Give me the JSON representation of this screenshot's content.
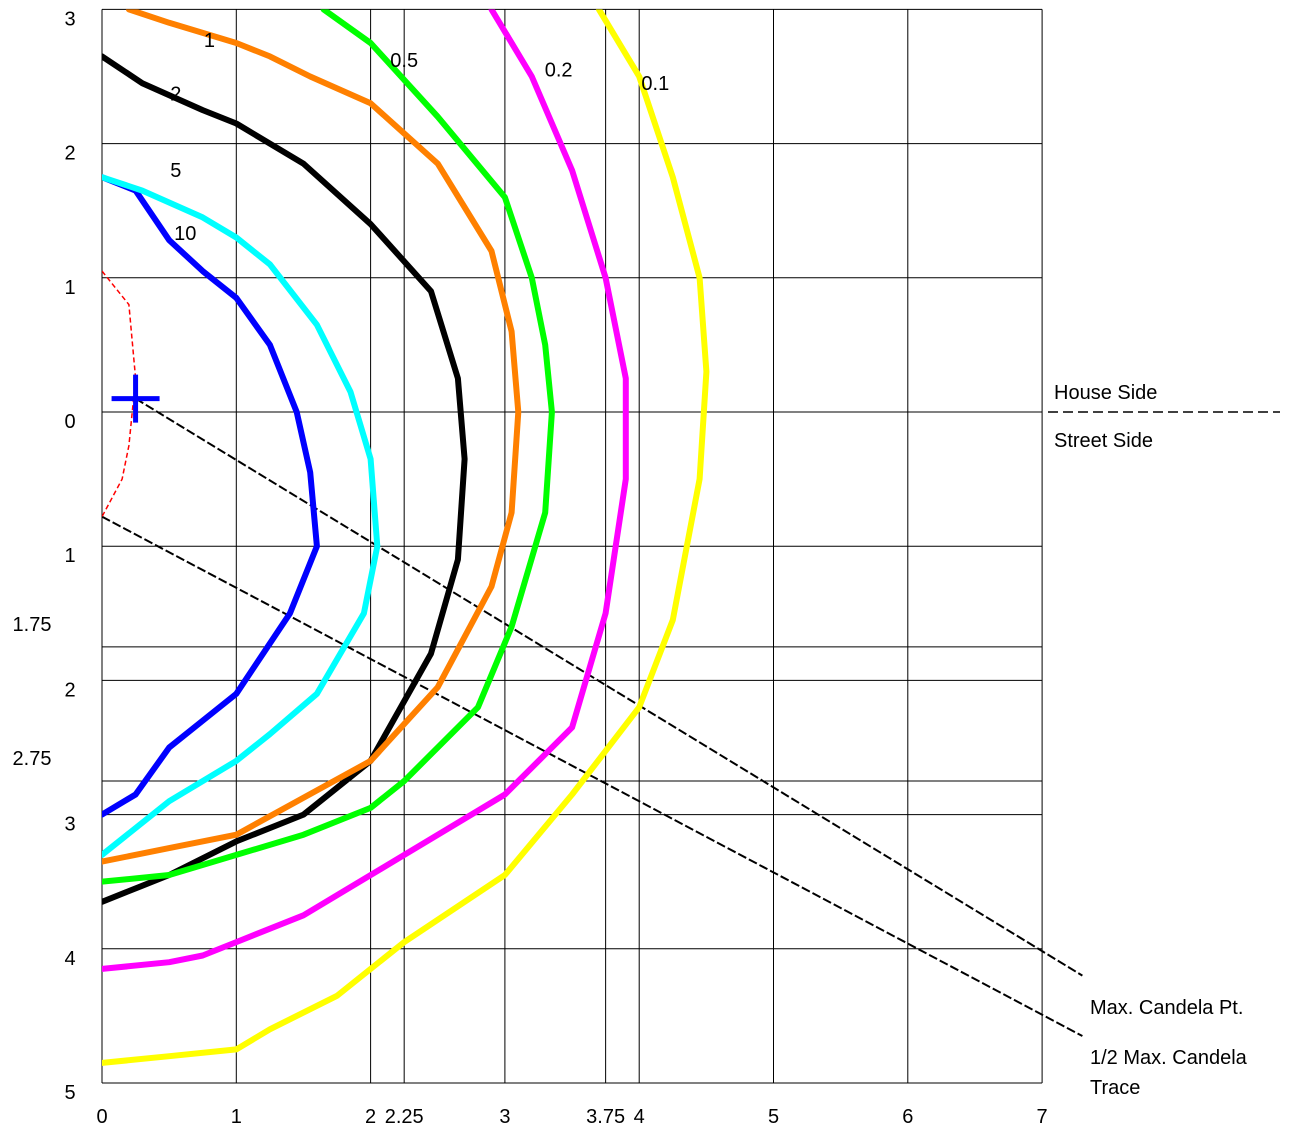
{
  "chart_data": {
    "type": "line",
    "title": "",
    "xlabel": "",
    "ylabel": "",
    "xlim": [
      0,
      7
    ],
    "ylim": [
      -3,
      5
    ],
    "grid": true,
    "x_ticks": [
      {
        "v": 0,
        "label": "0"
      },
      {
        "v": 1,
        "label": "1"
      },
      {
        "v": 2,
        "label": "2"
      },
      {
        "v": 2.25,
        "label": "2.25"
      },
      {
        "v": 3,
        "label": "3"
      },
      {
        "v": 3.75,
        "label": "3.75"
      },
      {
        "v": 4,
        "label": "4"
      },
      {
        "v": 5,
        "label": "5"
      },
      {
        "v": 6,
        "label": "6"
      },
      {
        "v": 7,
        "label": "7"
      }
    ],
    "y_ticks": [
      {
        "v": -3,
        "label": "3"
      },
      {
        "v": -2,
        "label": "2"
      },
      {
        "v": -1,
        "label": "1"
      },
      {
        "v": 0,
        "label": "0"
      },
      {
        "v": 1,
        "label": "1"
      },
      {
        "v": 1.75,
        "label": "1.75"
      },
      {
        "v": 2,
        "label": "2"
      },
      {
        "v": 2.75,
        "label": "2.75"
      },
      {
        "v": 3,
        "label": "3"
      },
      {
        "v": 4,
        "label": "4"
      },
      {
        "v": 5,
        "label": "5"
      }
    ],
    "series": [
      {
        "name": "10",
        "color": "#0000ff",
        "label_at": [
          0.62,
          -1.28
        ],
        "points": [
          [
            0,
            -1.75
          ],
          [
            0.25,
            -1.65
          ],
          [
            0.5,
            -1.28
          ],
          [
            0.75,
            -1.05
          ],
          [
            1.0,
            -0.85
          ],
          [
            1.25,
            -0.5
          ],
          [
            1.45,
            0.0
          ],
          [
            1.55,
            0.45
          ],
          [
            1.6,
            1.0
          ],
          [
            1.4,
            1.5
          ],
          [
            1.0,
            2.1
          ],
          [
            0.75,
            2.3
          ],
          [
            0.5,
            2.5
          ],
          [
            0.25,
            2.85
          ],
          [
            0,
            3.0
          ]
        ]
      },
      {
        "name": "5",
        "color": "#00ffff",
        "label_at": [
          0.55,
          -1.75
        ],
        "points": [
          [
            0,
            -1.75
          ],
          [
            0.3,
            -1.65
          ],
          [
            0.75,
            -1.45
          ],
          [
            1.0,
            -1.3
          ],
          [
            1.25,
            -1.1
          ],
          [
            1.6,
            -0.65
          ],
          [
            1.85,
            -0.15
          ],
          [
            2.0,
            0.35
          ],
          [
            2.05,
            1.0
          ],
          [
            1.95,
            1.5
          ],
          [
            1.6,
            2.1
          ],
          [
            1.25,
            2.4
          ],
          [
            1.0,
            2.6
          ],
          [
            0.5,
            2.9
          ],
          [
            0,
            3.3
          ]
        ]
      },
      {
        "name": "2",
        "color": "#000000",
        "label_at": [
          0.55,
          -2.32
        ],
        "points": [
          [
            0,
            -2.65
          ],
          [
            0.3,
            -2.45
          ],
          [
            0.75,
            -2.25
          ],
          [
            1.0,
            -2.15
          ],
          [
            1.5,
            -1.85
          ],
          [
            2.0,
            -1.4
          ],
          [
            2.45,
            -0.9
          ],
          [
            2.65,
            -0.25
          ],
          [
            2.7,
            0.35
          ],
          [
            2.65,
            1.1
          ],
          [
            2.45,
            1.8
          ],
          [
            2.0,
            2.6
          ],
          [
            1.5,
            3.0
          ],
          [
            1.0,
            3.2
          ],
          [
            0.5,
            3.45
          ],
          [
            0,
            3.65
          ]
        ]
      },
      {
        "name": "1",
        "color": "#ff8000",
        "label_at": [
          0.8,
          -2.72
        ],
        "points": [
          [
            0.2,
            -3.0
          ],
          [
            0.5,
            -2.9
          ],
          [
            1.0,
            -2.75
          ],
          [
            1.25,
            -2.65
          ],
          [
            1.55,
            -2.5
          ],
          [
            2.0,
            -2.3
          ],
          [
            2.5,
            -1.85
          ],
          [
            2.9,
            -1.2
          ],
          [
            3.05,
            -0.6
          ],
          [
            3.1,
            0.0
          ],
          [
            3.05,
            0.75
          ],
          [
            2.9,
            1.3
          ],
          [
            2.5,
            2.05
          ],
          [
            2.0,
            2.6
          ],
          [
            1.0,
            3.15
          ],
          [
            0.5,
            3.25
          ],
          [
            0,
            3.35
          ]
        ]
      },
      {
        "name": "0.5",
        "color": "#00ff00",
        "label_at": [
          2.25,
          -2.57
        ],
        "points": [
          [
            1.65,
            -3.0
          ],
          [
            2.0,
            -2.75
          ],
          [
            2.5,
            -2.2
          ],
          [
            3.0,
            -1.6
          ],
          [
            3.2,
            -1.0
          ],
          [
            3.3,
            -0.5
          ],
          [
            3.35,
            0.0
          ],
          [
            3.3,
            0.75
          ],
          [
            3.05,
            1.6
          ],
          [
            2.8,
            2.2
          ],
          [
            2.25,
            2.75
          ],
          [
            2.0,
            2.95
          ],
          [
            1.5,
            3.15
          ],
          [
            1.0,
            3.3
          ],
          [
            0.5,
            3.45
          ],
          [
            0,
            3.5
          ]
        ]
      },
      {
        "name": "0.2",
        "color": "#ff00ff",
        "label_at": [
          3.4,
          -2.5
        ],
        "points": [
          [
            2.9,
            -3.0
          ],
          [
            3.2,
            -2.5
          ],
          [
            3.5,
            -1.8
          ],
          [
            3.75,
            -1.0
          ],
          [
            3.9,
            -0.25
          ],
          [
            3.9,
            0.5
          ],
          [
            3.75,
            1.5
          ],
          [
            3.5,
            2.35
          ],
          [
            3.0,
            2.85
          ],
          [
            2.25,
            3.3
          ],
          [
            1.5,
            3.75
          ],
          [
            1.0,
            3.95
          ],
          [
            0.75,
            4.05
          ],
          [
            0.5,
            4.1
          ],
          [
            0,
            4.15
          ]
        ]
      },
      {
        "name": "0.1",
        "color": "#ffff00",
        "label_at": [
          4.12,
          -2.4
        ],
        "points": [
          [
            3.7,
            -3.0
          ],
          [
            4.0,
            -2.5
          ],
          [
            4.25,
            -1.75
          ],
          [
            4.45,
            -1.0
          ],
          [
            4.5,
            -0.3
          ],
          [
            4.45,
            0.5
          ],
          [
            4.25,
            1.55
          ],
          [
            4.0,
            2.2
          ],
          [
            3.5,
            2.85
          ],
          [
            3.0,
            3.45
          ],
          [
            2.25,
            3.95
          ],
          [
            1.75,
            4.35
          ],
          [
            1.25,
            4.6
          ],
          [
            1.0,
            4.75
          ],
          [
            0.5,
            4.8
          ],
          [
            0,
            4.85
          ]
        ]
      }
    ],
    "half_max_trace": {
      "color": "#ff0000",
      "points": [
        [
          0,
          -1.05
        ],
        [
          0.2,
          -0.8
        ],
        [
          0.25,
          -0.25
        ],
        [
          0.2,
          0.25
        ],
        [
          0.15,
          0.5
        ],
        [
          0,
          0.78
        ]
      ]
    },
    "max_candela_point": [
      0.25,
      -0.1
    ],
    "reference_lines": [
      {
        "from": [
          0.25,
          -0.1
        ],
        "to": [
          7.3,
          4.2
        ]
      },
      {
        "from": [
          0,
          0.78
        ],
        "to": [
          7.3,
          4.65
        ]
      }
    ],
    "annotations": {
      "house_side": "House Side",
      "street_side": "Street Side",
      "max_candela": "Max. Candela Pt.",
      "half_max_line1": "1/2 Max. Candela",
      "half_max_line2": "Trace"
    }
  }
}
